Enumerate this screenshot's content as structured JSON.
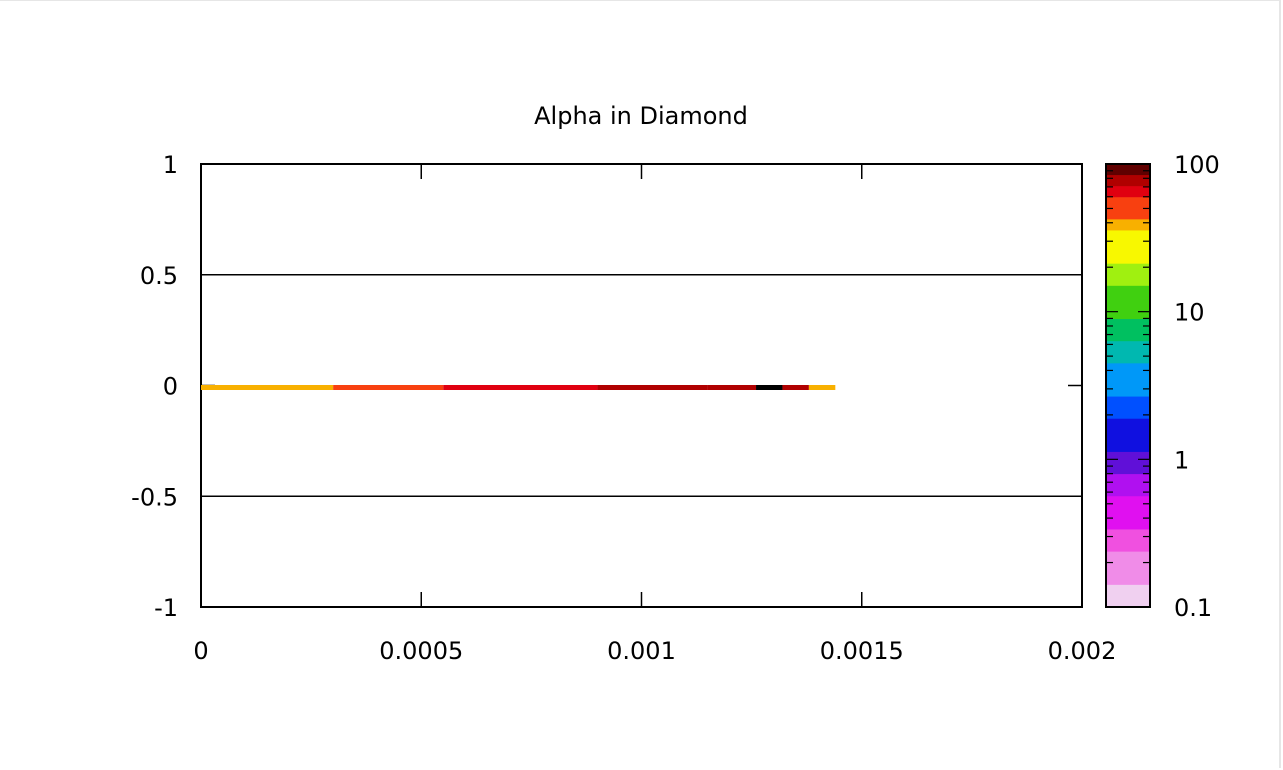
{
  "chart_data": {
    "type": "heatmap",
    "title": "Alpha in Diamond",
    "xlabel": "",
    "ylabel": "",
    "xlim": [
      0,
      0.002
    ],
    "ylim": [
      -1,
      1
    ],
    "x_ticks": [
      "0",
      "0.0005",
      "0.001",
      "0.0015",
      "0.002"
    ],
    "y_ticks": [
      "1",
      "0.5",
      "0",
      "-0.5",
      "-1"
    ],
    "y_grid_values": [
      0.5,
      -0.5
    ],
    "colorbar": {
      "scale": "log",
      "range": [
        0.1,
        100
      ],
      "tick_labels": [
        "100",
        "10",
        "1",
        "0.1"
      ],
      "tick_values": [
        100,
        10,
        1,
        0.1
      ]
    },
    "track": {
      "y": 0,
      "segments": [
        {
          "x0": 0,
          "x1": 0.0003,
          "value": 40
        },
        {
          "x0": 0.0003,
          "x1": 0.00055,
          "value": 55
        },
        {
          "x0": 0.00055,
          "x1": 0.0009,
          "value": 65
        },
        {
          "x0": 0.0009,
          "x1": 0.00115,
          "value": 72
        },
        {
          "x0": 0.00115,
          "x1": 0.00126,
          "value": 82
        },
        {
          "x0": 0.00126,
          "x1": 0.00132,
          "value": 100
        },
        {
          "x0": 0.00132,
          "x1": 0.00138,
          "value": 85
        },
        {
          "x0": 0.00138,
          "x1": 0.00144,
          "value": 40
        }
      ]
    }
  }
}
